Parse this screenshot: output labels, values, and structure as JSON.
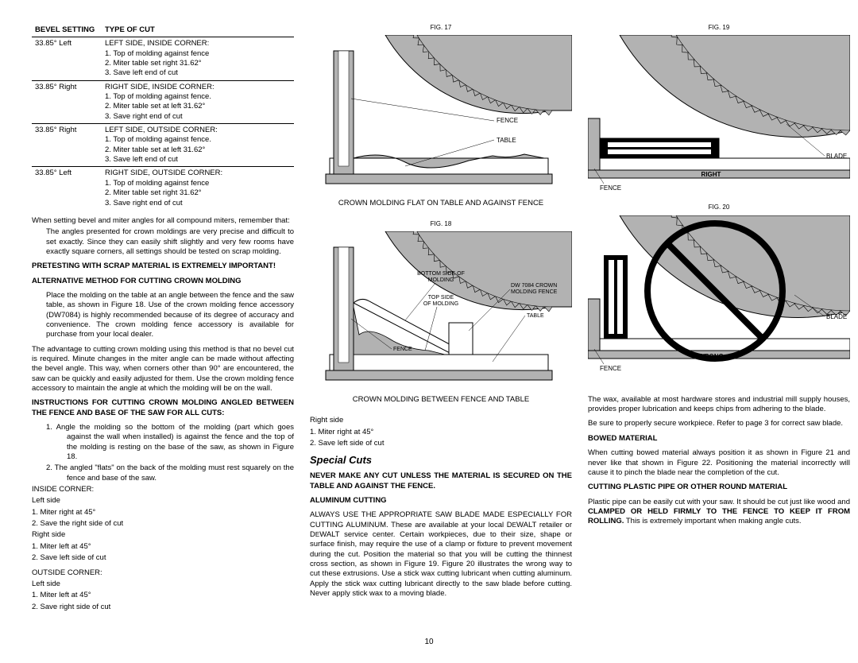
{
  "table": {
    "header": {
      "col1": "BEVEL SETTING",
      "col2": "TYPE OF CUT"
    },
    "rows": [
      {
        "setting": "33.85° Left",
        "cut": "LEFT SIDE, INSIDE CORNER:",
        "steps": [
          "1. Top of molding against fence",
          "2. Miter table set right 31.62°",
          "3. Save left end of cut"
        ]
      },
      {
        "setting": "33.85° Right",
        "cut": "RIGHT SIDE, INSIDE CORNER:",
        "steps": [
          "1. Top of molding against fence.",
          "2. Miter table set at left 31.62°",
          "3. Save right end of cut"
        ]
      },
      {
        "setting": "33.85° Right",
        "cut": "LEFT SIDE, OUTSIDE CORNER:",
        "steps": [
          "1. Top of molding against fence.",
          "2. Miter table set at left 31.62°",
          "3. Save left end of cut"
        ]
      },
      {
        "setting": "33.85° Left",
        "cut": "RIGHT SIDE, OUTSIDE CORNER:",
        "steps": [
          "1. Top of molding against fence",
          "2. Miter table set right 31.62°",
          "3. Save right end of cut"
        ]
      }
    ]
  },
  "col1_text": {
    "p1": "When setting bevel and miter angles for all compound miters, remember that:",
    "p1_indent": "The angles presented for crown moldings are very precise and difficult to set exactly. Since they can easily shift slightly and very few rooms have exactly square corners, all settings should be tested on scrap molding.",
    "p2_bold": "PRETESTING WITH SCRAP MATERIAL IS EXTREMELY IMPORTANT!",
    "h1": "ALTERNATIVE METHOD FOR CUTTING CROWN MOLDING",
    "p3": "Place the molding on the table at an angle between the fence and the saw table, as shown in Figure 18. Use of the crown molding fence accessory (DW7084) is highly recommended because of its degree of accuracy and convenience. The crown molding fence accessory is available for purchase from your local dealer.",
    "p4": "The advantage to cutting crown molding using this method is that no bevel cut is required. Minute changes in the miter angle can be made without affecting the bevel angle. This way, when corners other than 90° are encountered, the saw can be quickly and easily adjusted for them. Use the crown molding fence accessory to maintain the angle at which the molding will be on the wall.",
    "h2": "INSTRUCTIONS FOR CUTTING CROWN MOLDING ANGLED BETWEEN THE FENCE AND BASE OF THE SAW FOR ALL CUTS:",
    "li1": "1. Angle the molding so the bottom of the molding (part which goes against the wall when installed) is against the fence and the top of the molding is resting on the base of the saw, as shown in Figure 18.",
    "li2": "2. The angled \"flats\" on the back of the molding must rest squarely on the fence and base of the saw.",
    "ic_h": "INSIDE CORNER:",
    "ic_l": "Left side",
    "ic_l1": "1. Miter right at 45°",
    "ic_l2": "2. Save the right side of cut",
    "ic_r": "Right side",
    "ic_r1": "1. Miter left at 45°",
    "ic_r2": "2. Save left side of cut",
    "oc_h": "OUTSIDE CORNER:",
    "oc_l": "Left side",
    "oc_l1": "1. Miter left at 45°",
    "oc_l2": "2. Save right side of cut"
  },
  "col2_text": {
    "fig17": "FIG. 17",
    "cap17": "CROWN MOLDING FLAT ON TABLE AND AGAINST FENCE",
    "fig18": "FIG. 18",
    "cap18": "CROWN MOLDING BETWEEN FENCE AND TABLE",
    "oc_r": "Right side",
    "oc_r1": "1. Miter right at 45°",
    "oc_r2": "2. Save left side of cut",
    "h_special": "Special Cuts",
    "p_never": "NEVER MAKE ANY CUT UNLESS THE MATERIAL IS SECURED ON THE TABLE AND AGAINST THE FENCE.",
    "h_alum": "ALUMINUM CUTTING",
    "p_alum_1": "ALWAYS USE THE APPROPRIATE SAW BLADE MADE ESPECIALLY FOR CUTTING ALUMINUM. These are available at your local D",
    "p_alum_dewalt1": "E",
    "p_alum_2": "WALT retailer or D",
    "p_alum_dewalt2": "E",
    "p_alum_3": "WALT service center. Certain workpieces, due to their size, shape or surface finish, may require the use of a clamp or fixture to prevent movement during the cut. Position the material so that you will be cutting the thinnest cross section, as shown in Figure 19. Figure 20 illustrates the wrong way to cut these extrusions. Use a stick wax cutting lubricant when cutting aluminum. Apply the stick wax cutting lubricant directly to the saw blade before cutting. Never apply stick wax to a moving blade."
  },
  "col3_text": {
    "fig19": "FIG. 19",
    "fig20": "FIG. 20",
    "p_wax": "The wax, available at most hardware stores and industrial mill supply houses, provides proper lubrication and keeps chips from adhering to the blade.",
    "p_secure": "Be sure to properly secure workpiece. Refer to page 3 for correct saw blade.",
    "h_bowed": "BOWED MATERIAL",
    "p_bowed": "When cutting bowed material always position it as shown in Figure 21 and never like that shown in Figure 22. Positioning the material incorrectly will cause it to pinch the blade near the completion of the cut.",
    "h_pipe": "CUTTING PLASTIC PIPE OR OTHER ROUND MATERIAL",
    "p_pipe_1": "Plastic pipe can be easily cut with your saw. It should be cut just like wood and ",
    "p_pipe_bold": "CLAMPED OR HELD FIRMLY TO THE FENCE TO KEEP IT FROM ROLLING.",
    "p_pipe_2": " This is extremely important when making angle cuts."
  },
  "labels": {
    "fence": "FENCE",
    "table": "TABLE",
    "blade": "BLADE",
    "right": "RIGHT",
    "wrong": "WRONG",
    "bottom_side": "BOTTOM SIDE OF MOLDING",
    "top_side": "TOP SIDE OF MOLDING",
    "dw": "DW 7084 CROWN MOLDING FENCE"
  },
  "colors": {
    "gray_fill": "#b2b2b2",
    "dark_gray": "#808080",
    "black": "#000000"
  },
  "page_num": "10"
}
